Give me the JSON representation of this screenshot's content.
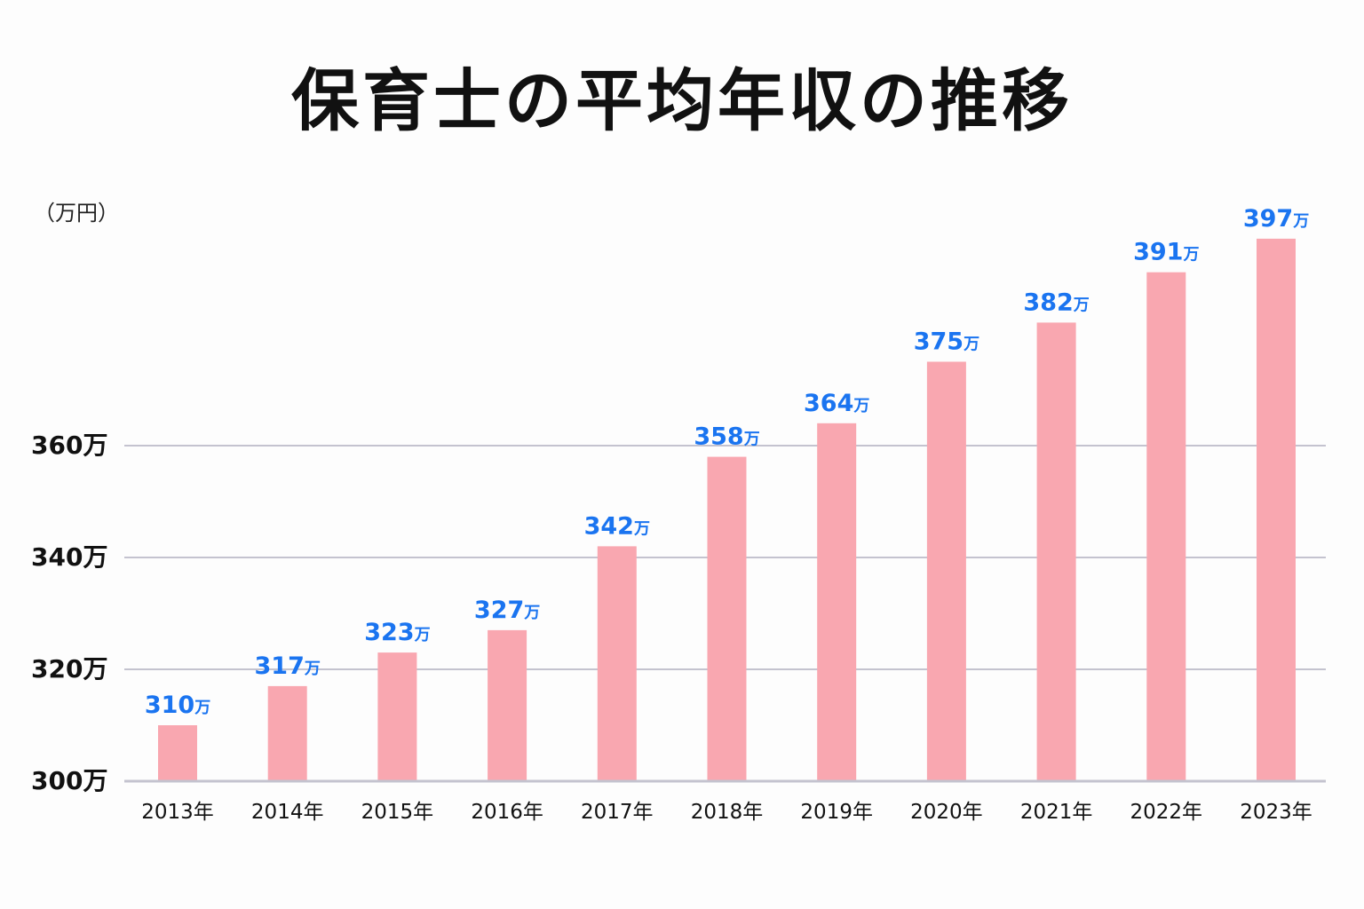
{
  "chart_data": {
    "type": "bar",
    "title": "保育士の平均年収の推移",
    "unit_label": "（万円）",
    "categories": [
      "2013年",
      "2014年",
      "2015年",
      "2016年",
      "2017年",
      "2018年",
      "2019年",
      "2020年",
      "2021年",
      "2022年",
      "2023年"
    ],
    "values": [
      310,
      317,
      323,
      327,
      342,
      358,
      364,
      375,
      382,
      391,
      397
    ],
    "value_suffix": "万",
    "yticks": [
      300,
      320,
      340,
      360
    ],
    "ytick_labels": [
      "300万",
      "320万",
      "340万",
      "360万"
    ],
    "ylim": [
      300,
      400
    ],
    "grid": true,
    "colors": {
      "bar": "#f9a7b0",
      "label": "#1a74f0",
      "grid": "#c4c3cf"
    }
  }
}
